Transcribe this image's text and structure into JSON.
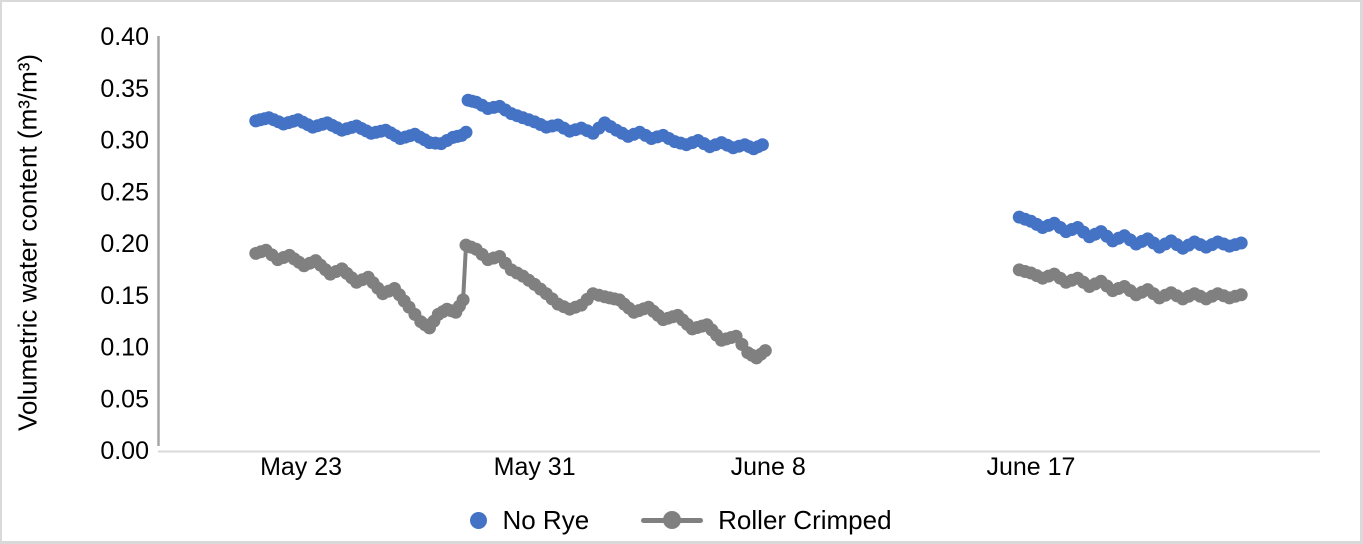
{
  "chart_data": {
    "type": "scatter",
    "title": "",
    "xlabel": "",
    "ylabel": "Volumetric water content (m³/m³)",
    "ylim": [
      0.0,
      0.4
    ],
    "ytick_step": 0.05,
    "yticks": [
      {
        "value": 0.0,
        "label": "0.00"
      },
      {
        "value": 0.05,
        "label": "0.05"
      },
      {
        "value": 0.1,
        "label": "0.10"
      },
      {
        "value": 0.15,
        "label": "0.15"
      },
      {
        "value": 0.2,
        "label": "0.20"
      },
      {
        "value": 0.25,
        "label": "0.25"
      },
      {
        "value": 0.3,
        "label": "0.30"
      },
      {
        "value": 0.35,
        "label": "0.35"
      },
      {
        "value": 0.4,
        "label": "0.40"
      }
    ],
    "x_unit": "days (0 = May 21)",
    "xlim_days": [
      -2.9,
      36.9
    ],
    "xticks": [
      {
        "day": 2,
        "label": "May 23"
      },
      {
        "day": 10,
        "label": "May 31"
      },
      {
        "day": 18,
        "label": "June 8"
      },
      {
        "day": 27,
        "label": "June 17"
      }
    ],
    "grid": "off",
    "legend_position": "bottom-center",
    "axis_colors": {
      "y_axis_line": "#a6a6a6",
      "x_axis_line": "#d9d9d9",
      "tick_text": "#000000"
    },
    "series": [
      {
        "name": "No Rye",
        "color": "#4472C4",
        "marker": "circle",
        "line": false,
        "segments": [
          [
            [
              0.45,
              0.318
            ],
            [
              0.9,
              0.321
            ],
            [
              1.4,
              0.315
            ],
            [
              1.9,
              0.319
            ],
            [
              2.4,
              0.312
            ],
            [
              2.9,
              0.316
            ],
            [
              3.4,
              0.309
            ],
            [
              3.9,
              0.313
            ],
            [
              4.4,
              0.306
            ],
            [
              4.9,
              0.309
            ],
            [
              5.4,
              0.301
            ],
            [
              5.9,
              0.305
            ],
            [
              6.4,
              0.297
            ],
            [
              6.8,
              0.296
            ],
            [
              7.2,
              0.302
            ],
            [
              7.5,
              0.304
            ],
            [
              7.65,
              0.307
            ],
            [
              7.72,
              0.338
            ],
            [
              8.0,
              0.336
            ],
            [
              8.4,
              0.33
            ],
            [
              8.8,
              0.332
            ],
            [
              9.2,
              0.325
            ],
            [
              9.6,
              0.321
            ],
            [
              10.0,
              0.317
            ],
            [
              10.4,
              0.312
            ],
            [
              10.8,
              0.314
            ],
            [
              11.2,
              0.308
            ],
            [
              11.6,
              0.311
            ],
            [
              12.0,
              0.306
            ],
            [
              12.4,
              0.316
            ],
            [
              12.8,
              0.309
            ],
            [
              13.2,
              0.303
            ],
            [
              13.6,
              0.307
            ],
            [
              14.0,
              0.301
            ],
            [
              14.4,
              0.304
            ],
            [
              14.8,
              0.298
            ],
            [
              15.2,
              0.295
            ],
            [
              15.6,
              0.299
            ],
            [
              16.0,
              0.293
            ],
            [
              16.4,
              0.297
            ],
            [
              16.8,
              0.292
            ],
            [
              17.2,
              0.295
            ],
            [
              17.5,
              0.291
            ],
            [
              17.8,
              0.295
            ]
          ],
          [
            [
              26.6,
              0.225
            ],
            [
              27.0,
              0.221
            ],
            [
              27.4,
              0.215
            ],
            [
              27.8,
              0.219
            ],
            [
              28.2,
              0.211
            ],
            [
              28.6,
              0.215
            ],
            [
              29.0,
              0.206
            ],
            [
              29.4,
              0.211
            ],
            [
              29.8,
              0.202
            ],
            [
              30.2,
              0.207
            ],
            [
              30.6,
              0.199
            ],
            [
              31.0,
              0.204
            ],
            [
              31.4,
              0.196
            ],
            [
              31.8,
              0.202
            ],
            [
              32.2,
              0.195
            ],
            [
              32.6,
              0.201
            ],
            [
              33.0,
              0.196
            ],
            [
              33.4,
              0.201
            ],
            [
              33.8,
              0.197
            ],
            [
              34.2,
              0.2
            ]
          ]
        ]
      },
      {
        "name": "Roller Crimped",
        "color": "#808080",
        "marker": "circle",
        "line": true,
        "segments": [
          [
            [
              0.45,
              0.19
            ],
            [
              0.8,
              0.193
            ],
            [
              1.2,
              0.184
            ],
            [
              1.6,
              0.188
            ],
            [
              2.1,
              0.178
            ],
            [
              2.5,
              0.183
            ],
            [
              3.0,
              0.17
            ],
            [
              3.4,
              0.175
            ],
            [
              3.9,
              0.162
            ],
            [
              4.3,
              0.167
            ],
            [
              4.8,
              0.151
            ],
            [
              5.2,
              0.156
            ],
            [
              5.7,
              0.138
            ],
            [
              6.1,
              0.124
            ],
            [
              6.4,
              0.118
            ],
            [
              6.7,
              0.131
            ],
            [
              7.0,
              0.136
            ],
            [
              7.3,
              0.133
            ],
            [
              7.55,
              0.145
            ],
            [
              7.65,
              0.198
            ],
            [
              8.0,
              0.194
            ],
            [
              8.4,
              0.184
            ],
            [
              8.8,
              0.187
            ],
            [
              9.2,
              0.174
            ],
            [
              9.6,
              0.168
            ],
            [
              10.0,
              0.16
            ],
            [
              10.4,
              0.151
            ],
            [
              10.8,
              0.141
            ],
            [
              11.2,
              0.136
            ],
            [
              11.6,
              0.14
            ],
            [
              12.0,
              0.151
            ],
            [
              12.4,
              0.148
            ],
            [
              12.9,
              0.145
            ],
            [
              13.4,
              0.133
            ],
            [
              13.9,
              0.138
            ],
            [
              14.4,
              0.126
            ],
            [
              14.9,
              0.13
            ],
            [
              15.4,
              0.117
            ],
            [
              15.9,
              0.121
            ],
            [
              16.4,
              0.106
            ],
            [
              16.9,
              0.11
            ],
            [
              17.3,
              0.094
            ],
            [
              17.6,
              0.089
            ],
            [
              17.9,
              0.096
            ]
          ],
          [
            [
              26.6,
              0.174
            ],
            [
              27.0,
              0.171
            ],
            [
              27.4,
              0.166
            ],
            [
              27.8,
              0.17
            ],
            [
              28.2,
              0.162
            ],
            [
              28.6,
              0.166
            ],
            [
              29.0,
              0.158
            ],
            [
              29.4,
              0.163
            ],
            [
              29.8,
              0.154
            ],
            [
              30.2,
              0.158
            ],
            [
              30.6,
              0.15
            ],
            [
              31.0,
              0.155
            ],
            [
              31.4,
              0.147
            ],
            [
              31.8,
              0.152
            ],
            [
              32.2,
              0.146
            ],
            [
              32.6,
              0.151
            ],
            [
              33.0,
              0.146
            ],
            [
              33.4,
              0.151
            ],
            [
              33.8,
              0.147
            ],
            [
              34.2,
              0.15
            ]
          ]
        ]
      }
    ]
  },
  "legend": {
    "items": [
      {
        "label": "No Rye",
        "marker": "dot",
        "color": "#4472C4"
      },
      {
        "label": "Roller Crimped",
        "marker": "line-dot",
        "color": "#808080"
      }
    ]
  }
}
